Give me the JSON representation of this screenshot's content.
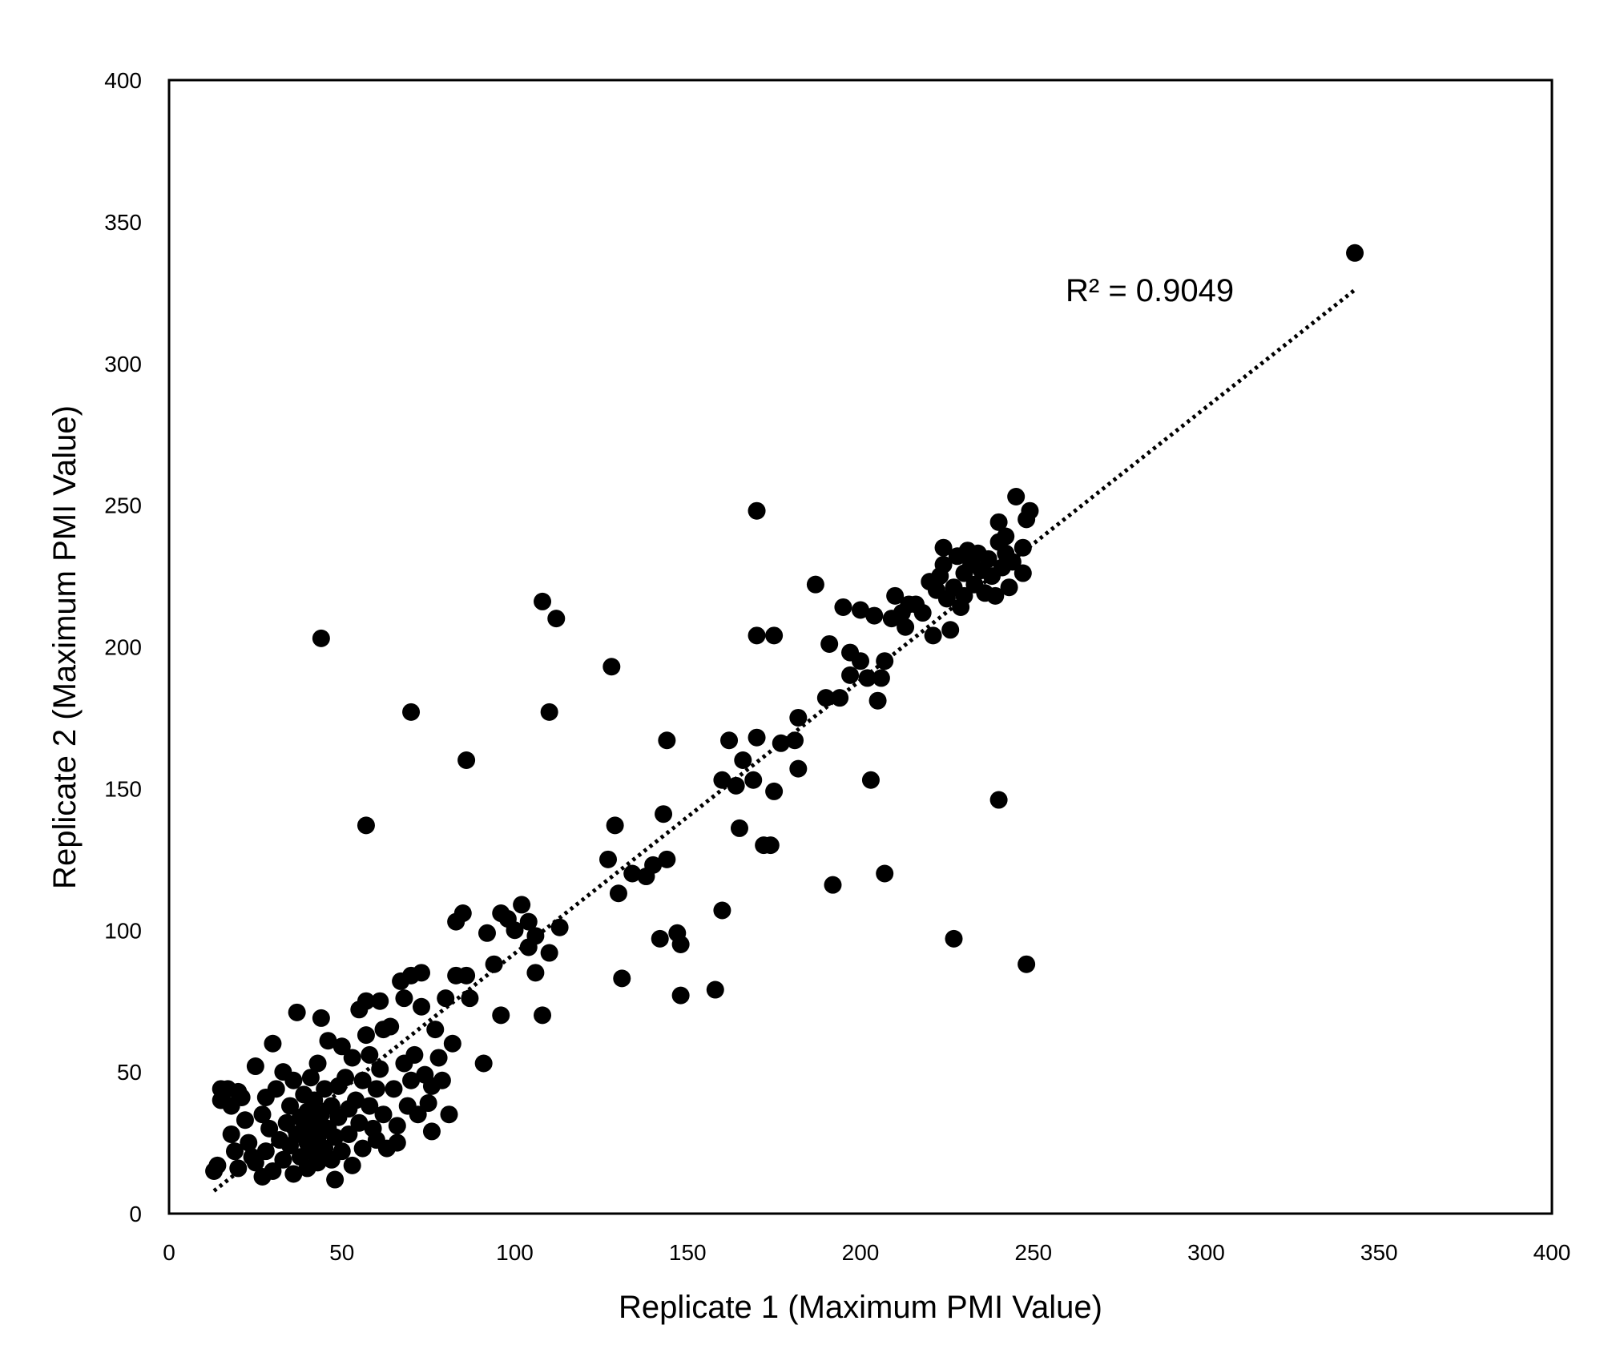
{
  "chart_data": {
    "type": "scatter",
    "title": "",
    "xlabel": "Replicate 1 (Maximum PMI Value)",
    "ylabel": "Replicate 2 (Maximum PMI Value)",
    "xlim": [
      0,
      400
    ],
    "ylim": [
      0,
      400
    ],
    "xticks": [
      0,
      50,
      100,
      150,
      200,
      250,
      300,
      350,
      400
    ],
    "yticks": [
      0,
      50,
      100,
      150,
      200,
      250,
      300,
      350,
      400
    ],
    "grid": false,
    "point_color": "#000000",
    "annotation": "R² = 0.9049",
    "trendline": {
      "style": "dotted",
      "x": [
        13,
        343
      ],
      "y": [
        8,
        326
      ]
    },
    "series": [
      {
        "points": [
          [
            13,
            15
          ],
          [
            14,
            17
          ],
          [
            15,
            44
          ],
          [
            15,
            40
          ],
          [
            17,
            44
          ],
          [
            18,
            28
          ],
          [
            18,
            38
          ],
          [
            19,
            22
          ],
          [
            20,
            43
          ],
          [
            21,
            41
          ],
          [
            20,
            16
          ],
          [
            22,
            33
          ],
          [
            23,
            25
          ],
          [
            24,
            20
          ],
          [
            25,
            18
          ],
          [
            25,
            52
          ],
          [
            27,
            13
          ],
          [
            27,
            35
          ],
          [
            28,
            22
          ],
          [
            28,
            41
          ],
          [
            29,
            30
          ],
          [
            30,
            60
          ],
          [
            30,
            15
          ],
          [
            31,
            44
          ],
          [
            32,
            26
          ],
          [
            33,
            50
          ],
          [
            33,
            19
          ],
          [
            34,
            32
          ],
          [
            35,
            38
          ],
          [
            35,
            24
          ],
          [
            36,
            14
          ],
          [
            36,
            47
          ],
          [
            37,
            71
          ],
          [
            37,
            28
          ],
          [
            38,
            34
          ],
          [
            38,
            20
          ],
          [
            39,
            42
          ],
          [
            39,
            30
          ],
          [
            40,
            16
          ],
          [
            40,
            25
          ],
          [
            40,
            36
          ],
          [
            41,
            48
          ],
          [
            41,
            22
          ],
          [
            42,
            32
          ],
          [
            42,
            40
          ],
          [
            43,
            18
          ],
          [
            43,
            27
          ],
          [
            43,
            53
          ],
          [
            44,
            69
          ],
          [
            44,
            35
          ],
          [
            45,
            23
          ],
          [
            45,
            44
          ],
          [
            46,
            61
          ],
          [
            46,
            30
          ],
          [
            47,
            19
          ],
          [
            47,
            38
          ],
          [
            48,
            27
          ],
          [
            48,
            12
          ],
          [
            49,
            45
          ],
          [
            49,
            34
          ],
          [
            50,
            59
          ],
          [
            50,
            22
          ],
          [
            51,
            48
          ],
          [
            52,
            37
          ],
          [
            52,
            28
          ],
          [
            53,
            55
          ],
          [
            53,
            17
          ],
          [
            54,
            40
          ],
          [
            55,
            72
          ],
          [
            55,
            32
          ],
          [
            56,
            23
          ],
          [
            56,
            47
          ],
          [
            57,
            75
          ],
          [
            57,
            63
          ],
          [
            58,
            56
          ],
          [
            58,
            38
          ],
          [
            59,
            30
          ],
          [
            60,
            44
          ],
          [
            60,
            26
          ],
          [
            61,
            75
          ],
          [
            61,
            51
          ],
          [
            62,
            65
          ],
          [
            62,
            35
          ],
          [
            63,
            23
          ],
          [
            64,
            66
          ],
          [
            65,
            44
          ],
          [
            66,
            31
          ],
          [
            66,
            25
          ],
          [
            67,
            82
          ],
          [
            68,
            76
          ],
          [
            68,
            53
          ],
          [
            69,
            38
          ],
          [
            70,
            84
          ],
          [
            70,
            47
          ],
          [
            71,
            56
          ],
          [
            72,
            35
          ],
          [
            73,
            85
          ],
          [
            73,
            73
          ],
          [
            74,
            49
          ],
          [
            75,
            39
          ],
          [
            76,
            29
          ],
          [
            76,
            45
          ],
          [
            77,
            65
          ],
          [
            78,
            55
          ],
          [
            79,
            47
          ],
          [
            80,
            76
          ],
          [
            81,
            35
          ],
          [
            82,
            60
          ],
          [
            83,
            103
          ],
          [
            83,
            84
          ],
          [
            85,
            106
          ],
          [
            86,
            84
          ],
          [
            87,
            76
          ],
          [
            91,
            53
          ],
          [
            92,
            99
          ],
          [
            94,
            88
          ],
          [
            96,
            70
          ],
          [
            96,
            106
          ],
          [
            98,
            104
          ],
          [
            100,
            100
          ],
          [
            102,
            109
          ],
          [
            104,
            103
          ],
          [
            104,
            94
          ],
          [
            106,
            98
          ],
          [
            106,
            85
          ],
          [
            108,
            70
          ],
          [
            110,
            92
          ],
          [
            113,
            101
          ],
          [
            108,
            216
          ],
          [
            112,
            210
          ],
          [
            110,
            177
          ],
          [
            86,
            160
          ],
          [
            70,
            177
          ],
          [
            57,
            137
          ],
          [
            44,
            203
          ],
          [
            128,
            193
          ],
          [
            127,
            125
          ],
          [
            129,
            137
          ],
          [
            130,
            113
          ],
          [
            131,
            83
          ],
          [
            134,
            120
          ],
          [
            138,
            119
          ],
          [
            140,
            123
          ],
          [
            142,
            97
          ],
          [
            143,
            141
          ],
          [
            144,
            167
          ],
          [
            144,
            125
          ],
          [
            147,
            99
          ],
          [
            148,
            95
          ],
          [
            148,
            77
          ],
          [
            158,
            79
          ],
          [
            160,
            107
          ],
          [
            160,
            153
          ],
          [
            162,
            167
          ],
          [
            164,
            151
          ],
          [
            165,
            136
          ],
          [
            166,
            160
          ],
          [
            169,
            153
          ],
          [
            170,
            168
          ],
          [
            170,
            204
          ],
          [
            170,
            248
          ],
          [
            172,
            130
          ],
          [
            174,
            130
          ],
          [
            175,
            204
          ],
          [
            175,
            149
          ],
          [
            177,
            166
          ],
          [
            181,
            167
          ],
          [
            182,
            157
          ],
          [
            182,
            175
          ],
          [
            187,
            222
          ],
          [
            190,
            182
          ],
          [
            191,
            201
          ],
          [
            192,
            116
          ],
          [
            194,
            182
          ],
          [
            195,
            214
          ],
          [
            197,
            198
          ],
          [
            197,
            190
          ],
          [
            200,
            213
          ],
          [
            200,
            195
          ],
          [
            202,
            189
          ],
          [
            203,
            153
          ],
          [
            204,
            211
          ],
          [
            205,
            181
          ],
          [
            206,
            189
          ],
          [
            207,
            195
          ],
          [
            207,
            120
          ],
          [
            209,
            210
          ],
          [
            210,
            218
          ],
          [
            212,
            212
          ],
          [
            213,
            207
          ],
          [
            214,
            215
          ],
          [
            216,
            215
          ],
          [
            218,
            212
          ],
          [
            220,
            223
          ],
          [
            221,
            204
          ],
          [
            222,
            220
          ],
          [
            223,
            225
          ],
          [
            224,
            235
          ],
          [
            224,
            229
          ],
          [
            225,
            217
          ],
          [
            226,
            206
          ],
          [
            227,
            221
          ],
          [
            227,
            97
          ],
          [
            228,
            232
          ],
          [
            229,
            214
          ],
          [
            230,
            226
          ],
          [
            230,
            218
          ],
          [
            231,
            234
          ],
          [
            232,
            229
          ],
          [
            233,
            222
          ],
          [
            234,
            233
          ],
          [
            235,
            227
          ],
          [
            236,
            219
          ],
          [
            237,
            231
          ],
          [
            238,
            225
          ],
          [
            239,
            218
          ],
          [
            240,
            237
          ],
          [
            240,
            244
          ],
          [
            240,
            146
          ],
          [
            241,
            228
          ],
          [
            242,
            233
          ],
          [
            242,
            239
          ],
          [
            243,
            221
          ],
          [
            244,
            230
          ],
          [
            245,
            253
          ],
          [
            247,
            235
          ],
          [
            247,
            226
          ],
          [
            248,
            245
          ],
          [
            248,
            88
          ],
          [
            249,
            248
          ],
          [
            343,
            339
          ]
        ]
      }
    ]
  }
}
